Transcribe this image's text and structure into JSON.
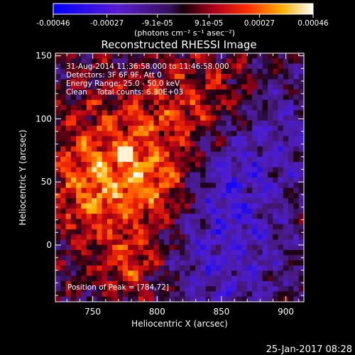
{
  "chart_data": {
    "type": "heatmap",
    "title": "Reconstructed RHESSI Image",
    "xlabel": "Heliocentric X (arcsec)",
    "ylabel": "Heliocentric Y (arcsec)",
    "xlim": [
      721,
      914
    ],
    "ylim": [
      -45,
      152
    ],
    "x_ticks": [
      750,
      800,
      850,
      900
    ],
    "y_ticks": [
      0,
      50,
      100,
      150
    ],
    "colorbar": {
      "range": [
        -0.00046,
        0.00046
      ],
      "tick_labels": [
        "-0.00046",
        "-0.00027",
        "-9.1e-05",
        "9.1e-05",
        "0.00027",
        "0.00046"
      ],
      "unit_label": "(photons cm⁻² s⁻¹ asec⁻²)"
    },
    "peak": {
      "x": 784,
      "y": 72
    },
    "annotations": [
      "31-Aug-2014 11:36:58.000 to 11:46:58.000",
      "Detectors: 3F 6F 9F, Att 0",
      "Energy Range: 25.0 - 50.0 keV",
      "Clean    Total counts: 6.30E+03"
    ],
    "peak_label": "Position of Peak = [784,72]",
    "timestamp": "25-Jan-2017 08:28"
  }
}
